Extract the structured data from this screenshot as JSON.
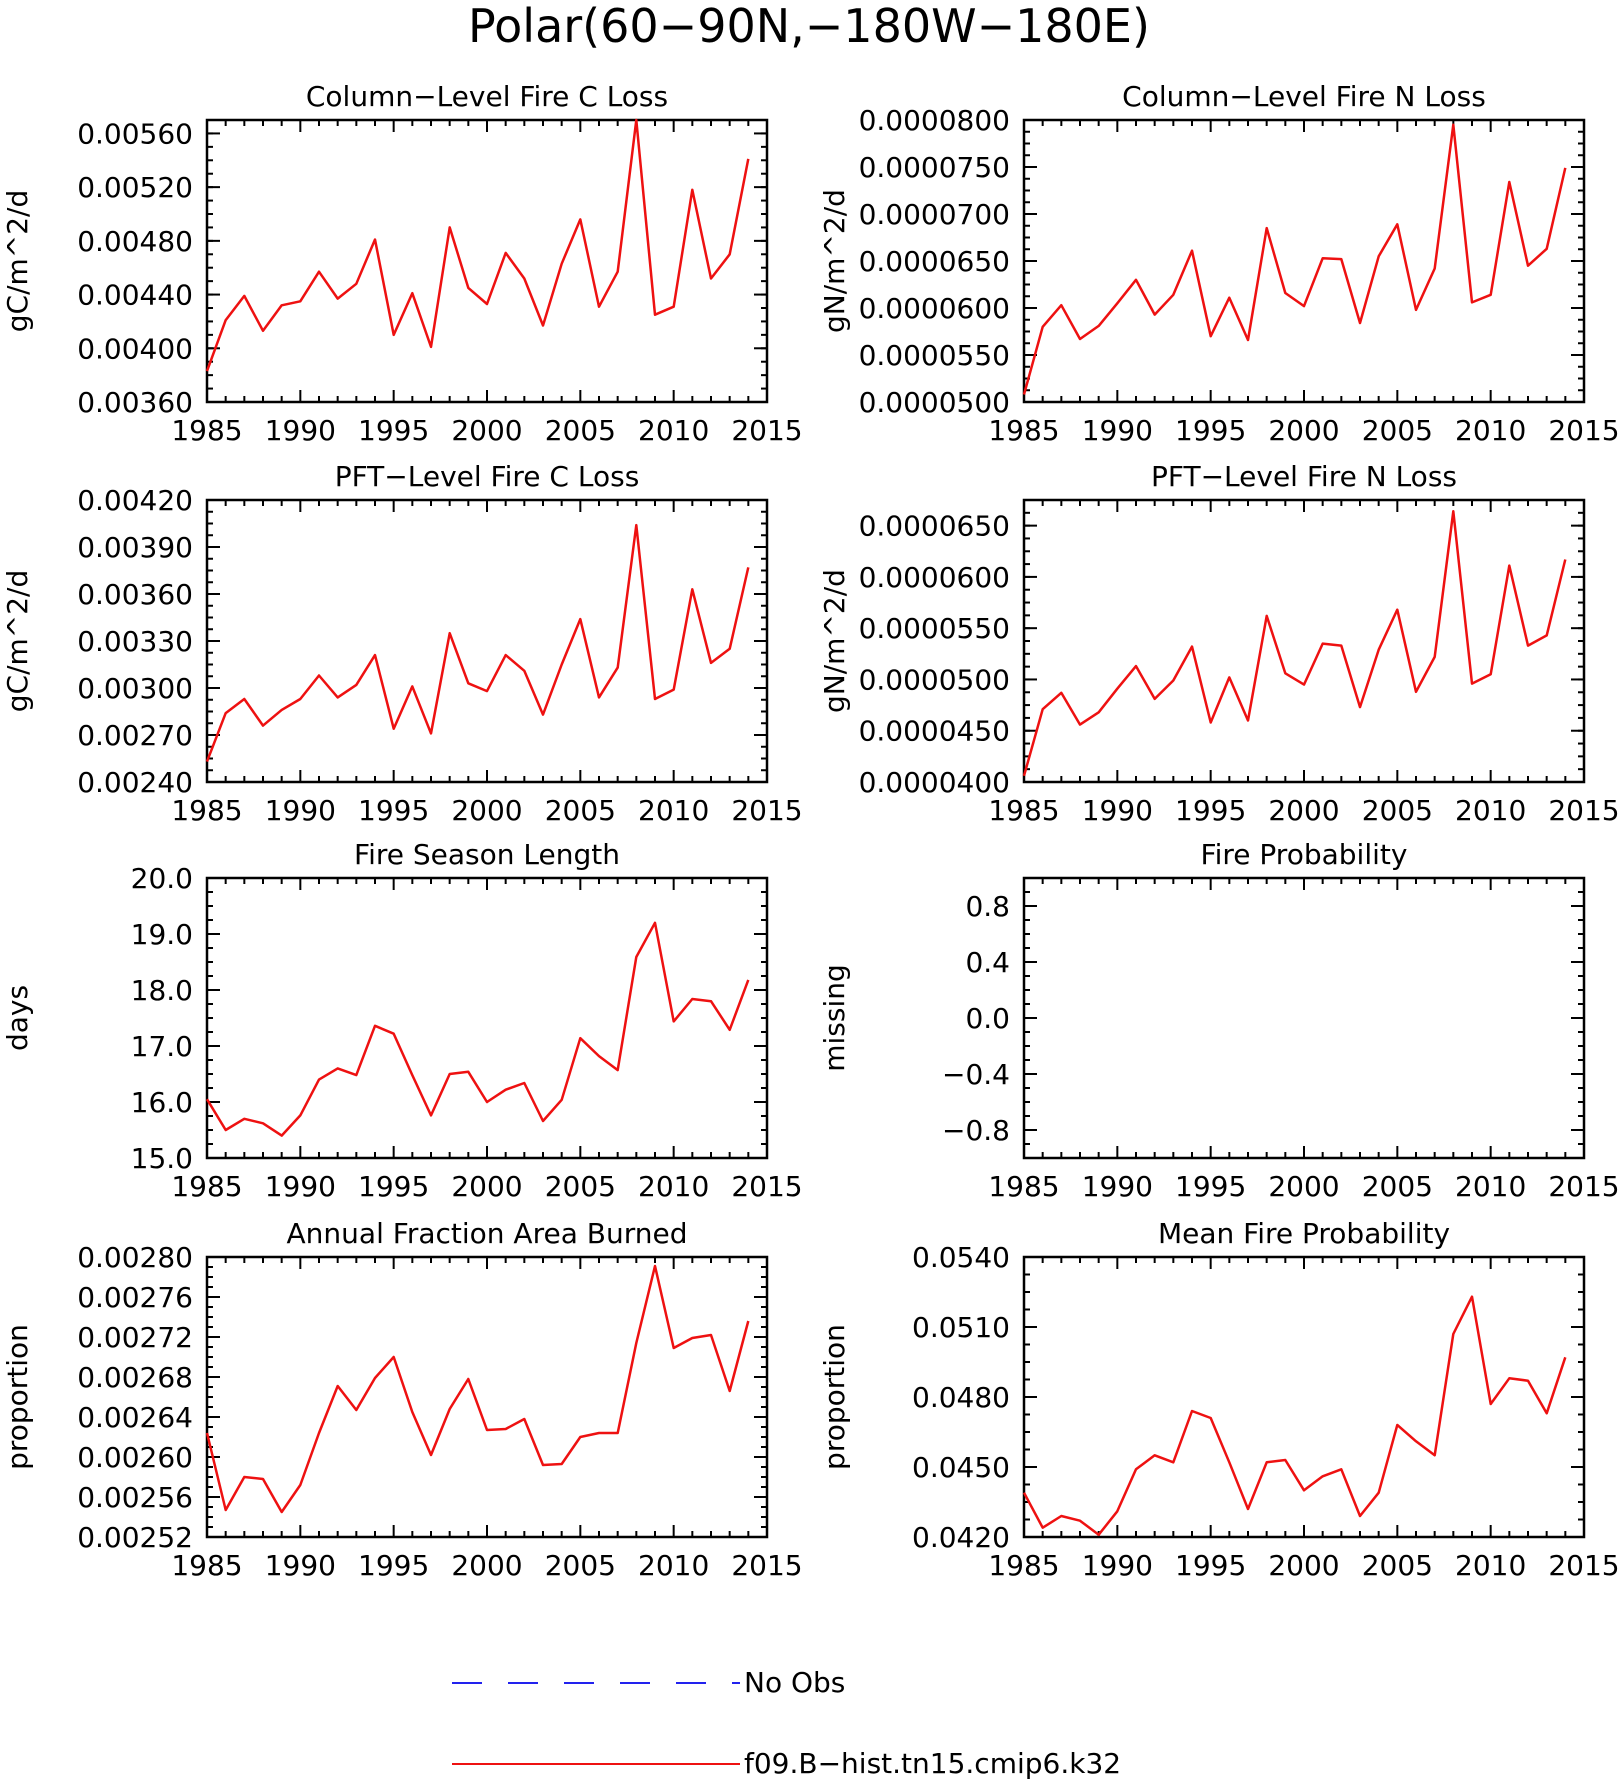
{
  "figure_title": "Polar(60−90N,−180W−180E)",
  "legend": {
    "entries": [
      {
        "label": "No Obs",
        "color": "#2222ee",
        "style": "dashed"
      },
      {
        "label": "f09.B−hist.tn15.cmip6.k32",
        "color": "#ee1111",
        "style": "solid"
      }
    ]
  },
  "colors": {
    "series": "#ee1111",
    "axis": "#000000"
  },
  "chart_data": [
    {
      "type": "line",
      "title": "Column−Level Fire C Loss",
      "ylabel": "gC/m^2/d",
      "xlim": [
        1985,
        2015
      ],
      "ylim": [
        0.0036,
        0.0057
      ],
      "xticks": [
        1985,
        1990,
        1995,
        2000,
        2005,
        2010,
        2015
      ],
      "yticks": [
        "0.00360",
        "0.00400",
        "0.00440",
        "0.00480",
        "0.00520",
        "0.00560"
      ],
      "x": [
        1985,
        1986,
        1987,
        1988,
        1989,
        1990,
        1991,
        1992,
        1993,
        1994,
        1995,
        1996,
        1997,
        1998,
        1999,
        2000,
        2001,
        2002,
        2003,
        2004,
        2005,
        2006,
        2007,
        2008,
        2009,
        2010,
        2011,
        2012,
        2013,
        2014
      ],
      "series": [
        {
          "values": [
            0.00383,
            0.00421,
            0.00439,
            0.00413,
            0.00432,
            0.00435,
            0.00457,
            0.00437,
            0.00448,
            0.00481,
            0.0041,
            0.00441,
            0.00401,
            0.0049,
            0.00445,
            0.00433,
            0.00471,
            0.00452,
            0.00417,
            0.00463,
            0.00496,
            0.00431,
            0.00457,
            0.0057,
            0.00425,
            0.00431,
            0.00518,
            0.00452,
            0.0047,
            0.00541
          ]
        }
      ]
    },
    {
      "type": "line",
      "title": "Column−Level Fire N Loss",
      "ylabel": "gN/m^2/d",
      "xlim": [
        1985,
        2015
      ],
      "ylim": [
        5e-05,
        8e-05
      ],
      "xticks": [
        1985,
        1990,
        1995,
        2000,
        2005,
        2010,
        2015
      ],
      "yticks": [
        "0.0000500",
        "0.0000550",
        "0.0000600",
        "0.0000650",
        "0.0000700",
        "0.0000750",
        "0.0000800"
      ],
      "x": [
        1985,
        1986,
        1987,
        1988,
        1989,
        1990,
        1991,
        1992,
        1993,
        1994,
        1995,
        1996,
        1997,
        1998,
        1999,
        2000,
        2001,
        2002,
        2003,
        2004,
        2005,
        2006,
        2007,
        2008,
        2009,
        2010,
        2011,
        2012,
        2013,
        2014
      ],
      "series": [
        {
          "values": [
            5.08e-05,
            5.8e-05,
            6.03e-05,
            5.67e-05,
            5.81e-05,
            6.05e-05,
            6.3e-05,
            5.93e-05,
            6.14e-05,
            6.61e-05,
            5.7e-05,
            6.11e-05,
            5.66e-05,
            6.85e-05,
            6.16e-05,
            6.02e-05,
            6.53e-05,
            6.52e-05,
            5.84e-05,
            6.55e-05,
            6.89e-05,
            5.98e-05,
            6.42e-05,
            7.95e-05,
            6.06e-05,
            6.14e-05,
            7.34e-05,
            6.45e-05,
            6.63e-05,
            7.49e-05
          ]
        }
      ]
    },
    {
      "type": "line",
      "title": "PFT−Level Fire C Loss",
      "ylabel": "gC/m^2/d",
      "xlim": [
        1985,
        2015
      ],
      "ylim": [
        0.0024,
        0.0042
      ],
      "xticks": [
        1985,
        1990,
        1995,
        2000,
        2005,
        2010,
        2015
      ],
      "yticks": [
        "0.00240",
        "0.00270",
        "0.00300",
        "0.00330",
        "0.00360",
        "0.00390",
        "0.00420"
      ],
      "x": [
        1985,
        1986,
        1987,
        1988,
        1989,
        1990,
        1991,
        1992,
        1993,
        1994,
        1995,
        1996,
        1997,
        1998,
        1999,
        2000,
        2001,
        2002,
        2003,
        2004,
        2005,
        2006,
        2007,
        2008,
        2009,
        2010,
        2011,
        2012,
        2013,
        2014
      ],
      "series": [
        {
          "values": [
            0.00253,
            0.00284,
            0.00293,
            0.00276,
            0.00286,
            0.00293,
            0.00308,
            0.00294,
            0.00302,
            0.00321,
            0.00274,
            0.00301,
            0.00271,
            0.00335,
            0.00303,
            0.00298,
            0.00321,
            0.00311,
            0.00283,
            0.00315,
            0.00344,
            0.00294,
            0.00313,
            0.00404,
            0.00293,
            0.00299,
            0.00363,
            0.00316,
            0.00325,
            0.00377
          ]
        }
      ]
    },
    {
      "type": "line",
      "title": "PFT−Level Fire N Loss",
      "ylabel": "gN/m^2/d",
      "xlim": [
        1985,
        2015
      ],
      "ylim": [
        4e-05,
        6.75e-05
      ],
      "xticks": [
        1985,
        1990,
        1995,
        2000,
        2005,
        2010,
        2015
      ],
      "yticks": [
        "0.0000400",
        "0.0000450",
        "0.0000500",
        "0.0000550",
        "0.0000600",
        "0.0000650"
      ],
      "x": [
        1985,
        1986,
        1987,
        1988,
        1989,
        1990,
        1991,
        1992,
        1993,
        1994,
        1995,
        1996,
        1997,
        1998,
        1999,
        2000,
        2001,
        2002,
        2003,
        2004,
        2005,
        2006,
        2007,
        2008,
        2009,
        2010,
        2011,
        2012,
        2013,
        2014
      ],
      "series": [
        {
          "values": [
            4.06e-05,
            4.71e-05,
            4.87e-05,
            4.56e-05,
            4.68e-05,
            4.91e-05,
            5.13e-05,
            4.81e-05,
            4.99e-05,
            5.32e-05,
            4.58e-05,
            5.02e-05,
            4.6e-05,
            5.62e-05,
            5.06e-05,
            4.95e-05,
            5.35e-05,
            5.33e-05,
            4.73e-05,
            5.29e-05,
            5.68e-05,
            4.88e-05,
            5.22e-05,
            6.64e-05,
            4.96e-05,
            5.05e-05,
            6.11e-05,
            5.33e-05,
            5.43e-05,
            6.17e-05
          ]
        }
      ]
    },
    {
      "type": "line",
      "title": "Fire Season Length",
      "ylabel": "days",
      "xlim": [
        1985,
        2015
      ],
      "ylim": [
        15.0,
        20.0
      ],
      "xticks": [
        1985,
        1990,
        1995,
        2000,
        2005,
        2010,
        2015
      ],
      "yticks": [
        "15.0",
        "16.0",
        "17.0",
        "18.0",
        "19.0",
        "20.0"
      ],
      "x": [
        1985,
        1986,
        1987,
        1988,
        1989,
        1990,
        1991,
        1992,
        1993,
        1994,
        1995,
        1996,
        1997,
        1998,
        1999,
        2000,
        2001,
        2002,
        2003,
        2004,
        2005,
        2006,
        2007,
        2008,
        2009,
        2010,
        2011,
        2012,
        2013,
        2014
      ],
      "series": [
        {
          "values": [
            16.05,
            15.5,
            15.7,
            15.62,
            15.4,
            15.76,
            16.4,
            16.6,
            16.48,
            17.36,
            17.22,
            16.48,
            15.76,
            16.5,
            16.54,
            16.0,
            16.22,
            16.34,
            15.66,
            16.04,
            17.14,
            16.82,
            16.57,
            18.59,
            19.2,
            17.44,
            17.84,
            17.8,
            17.29,
            18.18
          ]
        }
      ]
    },
    {
      "type": "line",
      "title": "Fire Probability",
      "ylabel": "missing",
      "xlim": [
        1985,
        2015
      ],
      "ylim": [
        -1.0,
        1.0
      ],
      "xticks": [
        1985,
        1990,
        1995,
        2000,
        2005,
        2010,
        2015
      ],
      "yticks": [
        "−0.8",
        "−0.4",
        "0.0",
        "0.4",
        "0.8"
      ],
      "x": [],
      "series": []
    },
    {
      "type": "line",
      "title": "Annual Fraction Area Burned",
      "ylabel": "proportion",
      "xlim": [
        1985,
        2015
      ],
      "ylim": [
        0.00252,
        0.0028
      ],
      "xticks": [
        1985,
        1990,
        1995,
        2000,
        2005,
        2010,
        2015
      ],
      "yticks": [
        "0.00252",
        "0.00256",
        "0.00260",
        "0.00264",
        "0.00268",
        "0.00272",
        "0.00276",
        "0.00280"
      ],
      "x": [
        1985,
        1986,
        1987,
        1988,
        1989,
        1990,
        1991,
        1992,
        1993,
        1994,
        1995,
        1996,
        1997,
        1998,
        1999,
        2000,
        2001,
        2002,
        2003,
        2004,
        2005,
        2006,
        2007,
        2008,
        2009,
        2010,
        2011,
        2012,
        2013,
        2014
      ],
      "series": [
        {
          "values": [
            0.002624,
            0.002547,
            0.00258,
            0.002578,
            0.002545,
            0.002572,
            0.002624,
            0.002671,
            0.002647,
            0.002679,
            0.0027,
            0.002645,
            0.002602,
            0.002648,
            0.002678,
            0.002627,
            0.002628,
            0.002638,
            0.002592,
            0.002593,
            0.00262,
            0.002624,
            0.002624,
            0.002714,
            0.002791,
            0.002709,
            0.002719,
            0.002722,
            0.002666,
            0.002736
          ]
        }
      ]
    },
    {
      "type": "line",
      "title": "Mean Fire Probability",
      "ylabel": "proportion",
      "xlim": [
        1985,
        2015
      ],
      "ylim": [
        0.042,
        0.054
      ],
      "xticks": [
        1985,
        1990,
        1995,
        2000,
        2005,
        2010,
        2015
      ],
      "yticks": [
        "0.0420",
        "0.0450",
        "0.0480",
        "0.0510",
        "0.0540"
      ],
      "x": [
        1985,
        1986,
        1987,
        1988,
        1989,
        1990,
        1991,
        1992,
        1993,
        1994,
        1995,
        1996,
        1997,
        1998,
        1999,
        2000,
        2001,
        2002,
        2003,
        2004,
        2005,
        2006,
        2007,
        2008,
        2009,
        2010,
        2011,
        2012,
        2013,
        2014
      ],
      "series": [
        {
          "values": [
            0.0439,
            0.0424,
            0.0429,
            0.0427,
            0.0421,
            0.0431,
            0.0449,
            0.0455,
            0.0452,
            0.0474,
            0.0471,
            0.0452,
            0.0432,
            0.0452,
            0.0453,
            0.044,
            0.0446,
            0.0449,
            0.0429,
            0.0439,
            0.0468,
            0.0461,
            0.0455,
            0.0507,
            0.0523,
            0.0477,
            0.0488,
            0.0487,
            0.0473,
            0.0497
          ]
        }
      ]
    }
  ]
}
